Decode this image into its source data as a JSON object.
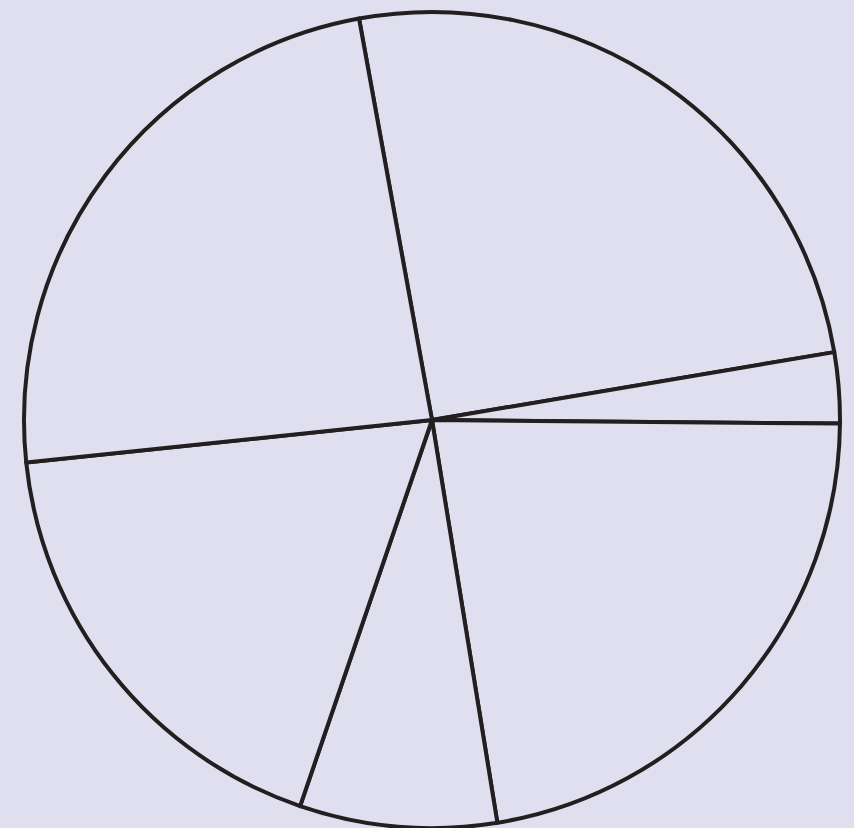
{
  "chart_data": {
    "type": "pie",
    "categories": [
      null,
      null,
      null,
      null,
      null,
      null
    ],
    "values": [
      25.2,
      2.8,
      22.3,
      7.8,
      18.1,
      23.8
    ],
    "colors": [
      "#e0dff0",
      "#e0dff0",
      "#e0dff0",
      "#e0dff0",
      "#e0dff0",
      "#e0dff0"
    ]
  }
}
